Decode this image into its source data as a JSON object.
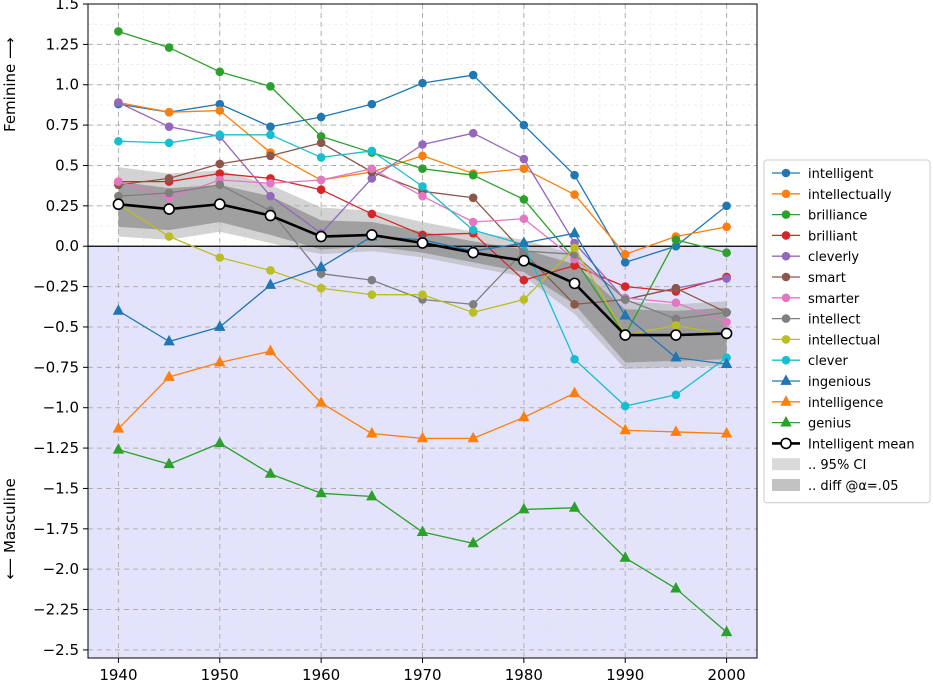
{
  "chart_data": {
    "type": "line",
    "title": "",
    "xlabel": "",
    "ylabel_top": "Feminine ⟶",
    "ylabel_bottom": "⟵ Masculine",
    "xlim": [
      1937,
      2003
    ],
    "ylim": [
      -2.55,
      1.5
    ],
    "x_ticks": [
      1940,
      1950,
      1960,
      1970,
      1980,
      1990,
      2000
    ],
    "y_ticks": [
      1.5,
      1.25,
      1.0,
      0.75,
      0.5,
      0.25,
      0.0,
      -0.25,
      -0.5,
      -0.75,
      -1.0,
      -1.25,
      -1.5,
      -1.75,
      -2.0,
      -2.25,
      -2.5
    ],
    "y_tick_labels": [
      "1.5",
      "1.25",
      "1.0",
      "0.75",
      "0.5",
      "0.25",
      "0.0",
      "−0.25",
      "−0.5",
      "−0.75",
      "−1.0",
      "−1.25",
      "−1.5",
      "−1.75",
      "−2.0",
      "−2.25",
      "−2.5"
    ],
    "x": [
      1940,
      1945,
      1950,
      1955,
      1960,
      1965,
      1970,
      1975,
      1980,
      1985,
      1990,
      1995,
      2000
    ],
    "masculine_shading_color": "#e3e3fb",
    "series": [
      {
        "name": "intelligent",
        "color": "#1f77b4",
        "marker": "circle",
        "values": [
          0.88,
          0.83,
          0.88,
          0.74,
          0.8,
          0.88,
          1.01,
          1.06,
          0.75,
          0.44,
          -0.1,
          0.0,
          0.25
        ]
      },
      {
        "name": "intellectually",
        "color": "#ff7f0e",
        "marker": "circle",
        "values": [
          0.89,
          0.83,
          0.84,
          0.58,
          0.41,
          0.46,
          0.56,
          0.45,
          0.48,
          0.32,
          -0.05,
          0.06,
          0.12
        ]
      },
      {
        "name": "brilliance",
        "color": "#2ca02c",
        "marker": "circle",
        "values": [
          1.33,
          1.23,
          1.08,
          0.99,
          0.68,
          0.58,
          0.48,
          0.44,
          0.29,
          -0.08,
          -0.55,
          0.04,
          -0.04
        ]
      },
      {
        "name": "brilliant",
        "color": "#d62728",
        "marker": "circle",
        "values": [
          0.4,
          0.4,
          0.45,
          0.42,
          0.35,
          0.2,
          0.07,
          0.08,
          -0.21,
          -0.12,
          -0.25,
          -0.28,
          -0.19
        ]
      },
      {
        "name": "cleverly",
        "color": "#9467bd",
        "marker": "circle",
        "values": [
          0.89,
          0.74,
          0.68,
          0.31,
          0.08,
          0.42,
          0.63,
          0.7,
          0.54,
          0.02,
          -0.33,
          -0.26,
          -0.2
        ]
      },
      {
        "name": "smart",
        "color": "#8c564b",
        "marker": "circle",
        "values": [
          0.38,
          0.42,
          0.51,
          0.56,
          0.64,
          0.46,
          0.34,
          0.3,
          -0.04,
          -0.36,
          -0.33,
          -0.26,
          -0.41
        ]
      },
      {
        "name": "smarter",
        "color": "#e377c2",
        "marker": "circle",
        "values": [
          0.4,
          0.3,
          0.41,
          0.39,
          0.41,
          0.48,
          0.31,
          0.15,
          0.17,
          -0.08,
          -0.32,
          -0.35,
          -0.47
        ]
      },
      {
        "name": "intellect",
        "color": "#7f7f7f",
        "marker": "circle",
        "values": [
          0.31,
          0.33,
          0.38,
          0.22,
          -0.17,
          -0.21,
          -0.33,
          -0.36,
          -0.03,
          -0.05,
          -0.33,
          -0.45,
          -0.41
        ]
      },
      {
        "name": "intellectual",
        "color": "#bcbd22",
        "marker": "circle",
        "values": [
          0.26,
          0.06,
          -0.07,
          -0.15,
          -0.26,
          -0.3,
          -0.3,
          -0.41,
          -0.33,
          -0.01,
          -0.55,
          -0.49,
          -0.55
        ]
      },
      {
        "name": "clever",
        "color": "#17becf",
        "marker": "circle",
        "values": [
          0.65,
          0.64,
          0.69,
          0.69,
          0.55,
          0.59,
          0.37,
          0.1,
          0.01,
          -0.7,
          -0.99,
          -0.92,
          -0.69
        ]
      },
      {
        "name": "ingenious",
        "color": "#1f77b4",
        "marker": "triangle",
        "values": [
          -0.4,
          -0.59,
          -0.5,
          -0.24,
          -0.13,
          0.06,
          0.04,
          -0.03,
          0.02,
          0.08,
          -0.43,
          -0.69,
          -0.73
        ]
      },
      {
        "name": "intelligence",
        "color": "#ff7f0e",
        "marker": "triangle",
        "values": [
          -1.13,
          -0.81,
          -0.72,
          -0.65,
          -0.97,
          -1.16,
          -1.19,
          -1.19,
          -1.06,
          -0.91,
          -1.14,
          -1.15,
          -1.16
        ]
      },
      {
        "name": "genius",
        "color": "#2ca02c",
        "marker": "triangle",
        "values": [
          -1.26,
          -1.35,
          -1.22,
          -1.41,
          -1.53,
          -1.55,
          -1.77,
          -1.84,
          -1.63,
          -1.62,
          -1.93,
          -2.12,
          -2.39
        ]
      },
      {
        "name": "Intelligent mean",
        "color": "#000000",
        "marker": "open-circle",
        "values": [
          0.26,
          0.23,
          0.26,
          0.19,
          0.06,
          0.07,
          0.02,
          -0.04,
          -0.09,
          -0.23,
          -0.55,
          -0.55,
          -0.54
        ]
      }
    ],
    "ci95_band": {
      "name": ".. 95% CI",
      "color": "#aeaeae",
      "lower": [
        0.06,
        0.04,
        0.09,
        0.02,
        -0.05,
        -0.03,
        -0.07,
        -0.13,
        -0.19,
        -0.42,
        -0.76,
        -0.75,
        -0.74
      ],
      "upper": [
        0.49,
        0.45,
        0.47,
        0.38,
        0.24,
        0.22,
        0.15,
        0.09,
        0.04,
        -0.05,
        -0.34,
        -0.36,
        -0.34
      ]
    },
    "diff_band": {
      "name": ".. diff @α=.05",
      "color": "#8f8f8f",
      "lower": [
        0.12,
        0.1,
        0.15,
        0.07,
        -0.02,
        0.0,
        -0.04,
        -0.1,
        -0.16,
        -0.36,
        -0.72,
        -0.71,
        -0.7
      ],
      "upper": [
        0.4,
        0.36,
        0.38,
        0.31,
        0.16,
        0.15,
        0.09,
        0.03,
        -0.02,
        -0.11,
        -0.39,
        -0.4,
        -0.38
      ]
    },
    "legend": {
      "placement": "right",
      "entries": [
        "intelligent",
        "intellectually",
        "brilliance",
        "brilliant",
        "cleverly",
        "smart",
        "smarter",
        "intellect",
        "intellectual",
        "clever",
        "ingenious",
        "intelligence",
        "genius",
        "Intelligent mean",
        ".. 95% CI",
        ".. diff @α=.05"
      ]
    }
  }
}
